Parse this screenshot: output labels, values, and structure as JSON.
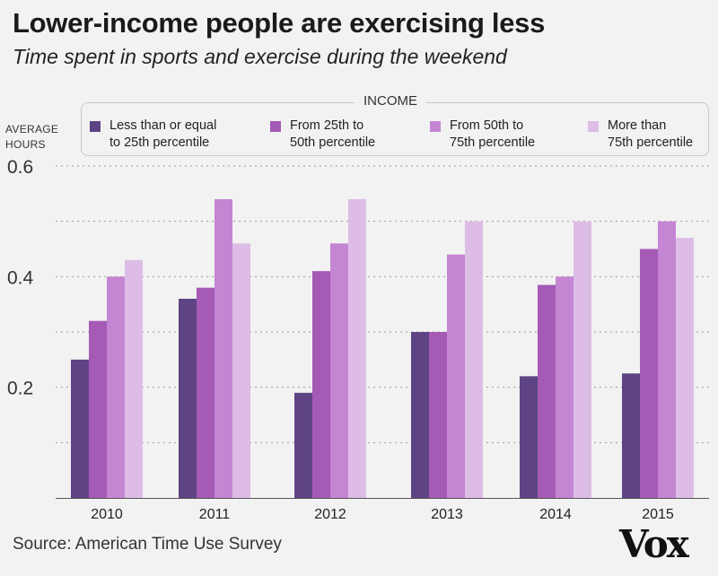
{
  "title": "Lower-income people are exercising less",
  "subtitle": "Time spent in sports and exercise during the weekend",
  "source": "Source: American Time Use Survey",
  "logo": "Vox",
  "legend": {
    "title": "INCOME",
    "items": [
      {
        "line1": "Less than or equal",
        "line2": "to 25th percentile",
        "color": "#5e4485"
      },
      {
        "line1": "From 25th to",
        "line2": "50th percentile",
        "color": "#a55ab6"
      },
      {
        "line1": "From 50th to",
        "line2": "75th percentile",
        "color": "#c486d3"
      },
      {
        "line1": "More than",
        "line2": "75th percentile",
        "color": "#ddbde6"
      }
    ]
  },
  "yaxis_title": {
    "line1": "AVERAGE",
    "line2": "HOURS"
  },
  "chart_data": {
    "type": "bar",
    "title": "Lower-income people are exercising less",
    "xlabel": "",
    "ylabel": "AVERAGE HOURS",
    "ylim": [
      0,
      0.6
    ],
    "yticks": [
      0.2,
      0.4,
      0.6
    ],
    "ytick_labels": [
      "0.2",
      "0.4",
      "0.6"
    ],
    "gridlines": [
      0.1,
      0.2,
      0.3,
      0.4,
      0.5,
      0.6
    ],
    "categories": [
      "2010",
      "2011",
      "2012",
      "2013",
      "2014",
      "2015"
    ],
    "series": [
      {
        "name": "Less than or equal to 25th percentile",
        "color": "#5e4485",
        "values": [
          0.25,
          0.36,
          0.19,
          0.3,
          0.22,
          0.225
        ]
      },
      {
        "name": "From 25th to 50th percentile",
        "color": "#a55ab6",
        "values": [
          0.32,
          0.38,
          0.41,
          0.3,
          0.385,
          0.45
        ]
      },
      {
        "name": "From 50th to 75th percentile",
        "color": "#c486d3",
        "values": [
          0.4,
          0.54,
          0.46,
          0.44,
          0.4,
          0.5
        ]
      },
      {
        "name": "More than 75th percentile",
        "color": "#ddbde6",
        "values": [
          0.43,
          0.46,
          0.54,
          0.5,
          0.5,
          0.47
        ]
      }
    ]
  }
}
